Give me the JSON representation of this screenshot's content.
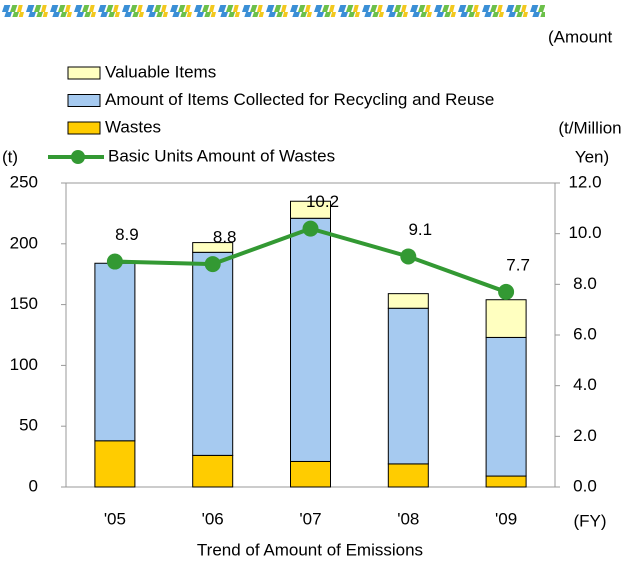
{
  "chart_data": {
    "type": "stacked_bar_line",
    "title": "Trend of Amount of Emissions",
    "corner_note": "(Amount",
    "y_label": "(t)",
    "y2_label": [
      "(t/Million",
      "Yen)"
    ],
    "x_label": "(FY)",
    "categories": [
      "'05",
      "'06",
      "'07",
      "'08",
      "'09"
    ],
    "series": [
      {
        "name": "Wastes",
        "color": "#ffcc00",
        "values": [
          38,
          26,
          21,
          19,
          9
        ]
      },
      {
        "name": "Amount of Items Collected for Recycling and Reuse",
        "color": "#a6caf0",
        "values": [
          146,
          167,
          200,
          128,
          114
        ]
      },
      {
        "name": "Valuable Items",
        "color": "#ffffc0",
        "values": [
          0,
          8,
          14,
          12,
          31
        ]
      },
      {
        "name": "Basic Units Amount of Wastes",
        "color": "#339933",
        "axis": "y2",
        "values": [
          8.9,
          8.8,
          10.2,
          9.1,
          7.7
        ]
      }
    ],
    "ylim": [
      0,
      250
    ],
    "yticks": [
      0,
      50,
      100,
      150,
      200,
      250
    ],
    "y2lim": [
      0,
      12
    ],
    "y2ticks": [
      {
        "value": 0,
        "label": "0.0"
      },
      {
        "value": 2,
        "label": "2.0"
      },
      {
        "value": 4,
        "label": "4.0"
      },
      {
        "value": 6,
        "label": "6.0"
      },
      {
        "value": 8,
        "label": "8.0"
      },
      {
        "value": 10,
        "label": "10.0"
      },
      {
        "value": 12,
        "label": "12.0"
      }
    ]
  }
}
